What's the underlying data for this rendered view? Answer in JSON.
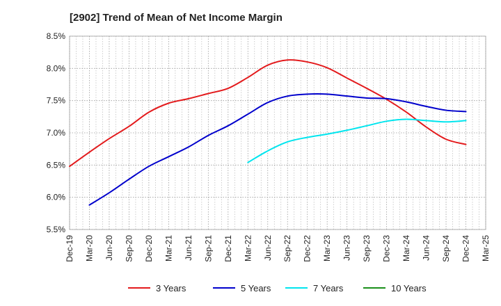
{
  "chart_data": {
    "type": "line",
    "title": "[2902]  Trend of Mean of Net Income Margin",
    "xlabel": "",
    "ylabel": "",
    "x_ticks": [
      "Dec-19",
      "Mar-20",
      "Jun-20",
      "Sep-20",
      "Dec-20",
      "Mar-21",
      "Jun-21",
      "Sep-21",
      "Dec-21",
      "Mar-22",
      "Jun-22",
      "Sep-22",
      "Dec-22",
      "Mar-23",
      "Jun-23",
      "Sep-23",
      "Dec-23",
      "Mar-24",
      "Jun-24",
      "Sep-24",
      "Dec-24",
      "Mar-25"
    ],
    "y_ticks": [
      "5.5%",
      "6.0%",
      "6.5%",
      "7.0%",
      "7.5%",
      "8.0%",
      "8.5%"
    ],
    "ylim": [
      5.5,
      8.5
    ],
    "grid": true,
    "legend_position": "bottom",
    "series": [
      {
        "name": "3 Years",
        "color": "#e31a1c",
        "x": [
          "Dec-19",
          "Mar-20",
          "Jun-20",
          "Sep-20",
          "Dec-20",
          "Mar-21",
          "Jun-21",
          "Sep-21",
          "Dec-21",
          "Mar-22",
          "Jun-22",
          "Sep-22",
          "Dec-22",
          "Mar-23",
          "Jun-23",
          "Sep-23",
          "Dec-23",
          "Mar-24",
          "Jun-24",
          "Sep-24",
          "Dec-24"
        ],
        "values": [
          6.48,
          6.7,
          6.91,
          7.1,
          7.32,
          7.46,
          7.53,
          7.61,
          7.69,
          7.86,
          8.05,
          8.13,
          8.1,
          8.01,
          7.85,
          7.69,
          7.52,
          7.32,
          7.09,
          6.9,
          6.82
        ]
      },
      {
        "name": "5 Years",
        "color": "#0000cc",
        "x": [
          "Mar-20",
          "Jun-20",
          "Sep-20",
          "Dec-20",
          "Mar-21",
          "Jun-21",
          "Sep-21",
          "Dec-21",
          "Mar-22",
          "Jun-22",
          "Sep-22",
          "Dec-22",
          "Mar-23",
          "Jun-23",
          "Sep-23",
          "Dec-23",
          "Mar-24",
          "Jun-24",
          "Sep-24",
          "Dec-24"
        ],
        "values": [
          5.88,
          6.07,
          6.28,
          6.48,
          6.63,
          6.78,
          6.96,
          7.11,
          7.29,
          7.47,
          7.57,
          7.6,
          7.6,
          7.57,
          7.54,
          7.53,
          7.48,
          7.41,
          7.35,
          7.33
        ]
      },
      {
        "name": "7 Years",
        "color": "#00e5ee",
        "x": [
          "Mar-22",
          "Jun-22",
          "Sep-22",
          "Dec-22",
          "Mar-23",
          "Jun-23",
          "Sep-23",
          "Dec-23",
          "Mar-24",
          "Jun-24",
          "Sep-24",
          "Dec-24"
        ],
        "values": [
          6.54,
          6.72,
          6.86,
          6.93,
          6.98,
          7.04,
          7.11,
          7.18,
          7.21,
          7.19,
          7.17,
          7.19
        ]
      },
      {
        "name": "10 Years",
        "color": "#1a8f1a",
        "x": [],
        "values": []
      }
    ]
  }
}
